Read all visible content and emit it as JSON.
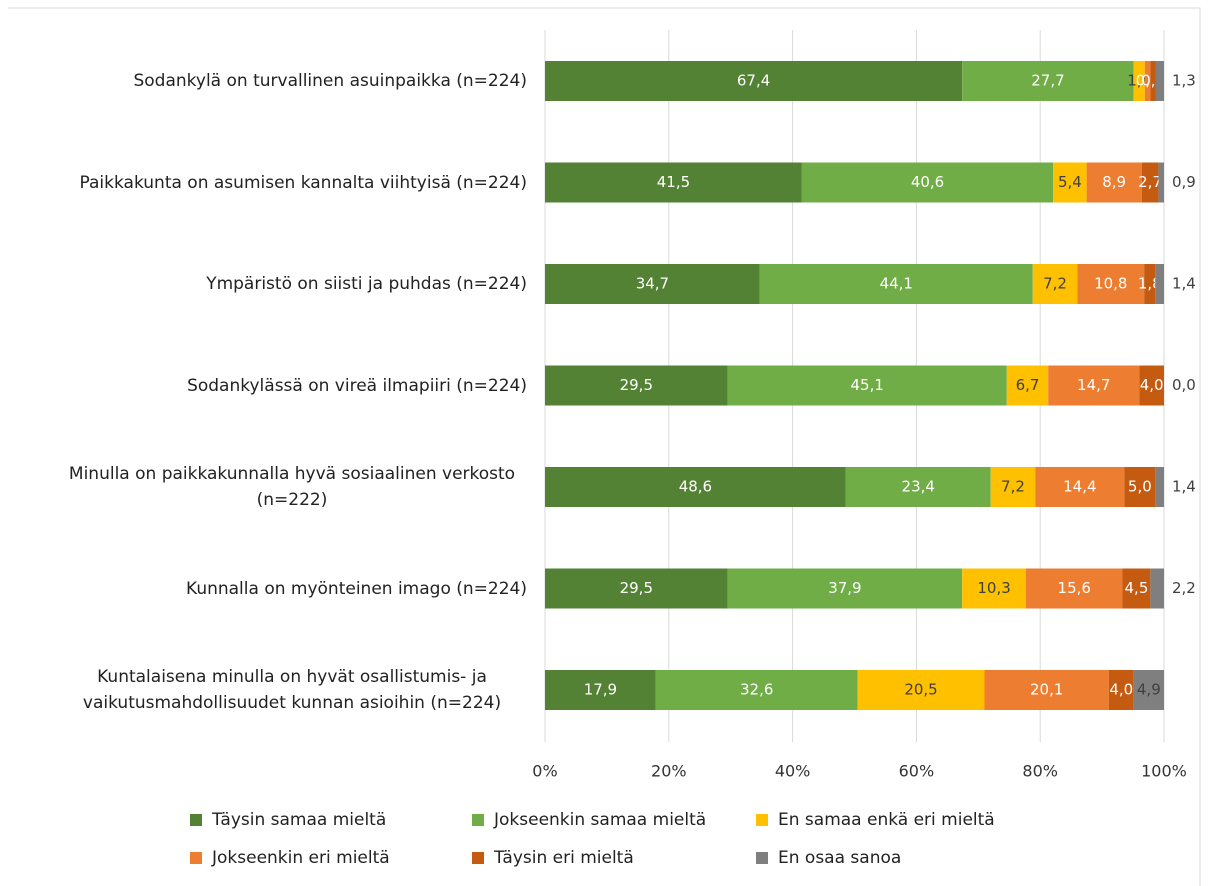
{
  "chart_data": {
    "type": "stacked-barh",
    "categories": [
      "Sodankylä on turvallinen asuinpaikka (n=224)",
      "Paikkakunta on asumisen kannalta viihtyisä (n=224)",
      "Ympäristö on siisti ja puhdas (n=224)",
      "Sodankylässä on vireä ilmapiiri (n=224)",
      "Minulla on paikkakunnalla hyvä sosiaalinen verkosto (n=222)",
      "Kunnalla on myönteinen imago (n=224)",
      "Kuntalaisena minulla on hyvät osallistumis- ja vaikutusmahdollisuudet kunnan asioihin (n=224)"
    ],
    "series": [
      {
        "name": "Täysin samaa mieltä",
        "color": "#548235",
        "values": [
          67.4,
          41.5,
          34.7,
          29.5,
          48.6,
          29.5,
          17.9
        ],
        "value_labels": [
          "67,4",
          "41,5",
          "34,7",
          "29,5",
          "48,6",
          "29,5",
          "17,9"
        ]
      },
      {
        "name": "Jokseenkin samaa mieltä",
        "color": "#70ad47",
        "values": [
          27.7,
          40.6,
          44.1,
          45.1,
          23.4,
          37.9,
          32.6
        ],
        "value_labels": [
          "27,7",
          "40,6",
          "44,1",
          "45,1",
          "23,4",
          "37,9",
          "32,6"
        ]
      },
      {
        "name": "En samaa enkä eri mieltä",
        "color": "#ffc000",
        "values": [
          1.8,
          5.4,
          7.2,
          6.7,
          7.2,
          10.3,
          20.5
        ],
        "value_labels": [
          "1,8",
          "5,4",
          "7,2",
          "6,7",
          "7,2",
          "10,3",
          "20,5"
        ]
      },
      {
        "name": "Jokseenkin eri mieltä",
        "color": "#ed7d31",
        "values": [
          0.9,
          8.9,
          10.8,
          14.7,
          14.4,
          15.6,
          20.1
        ],
        "value_labels": [
          "0,9",
          "8,9",
          "10,8",
          "14,7",
          "14,4",
          "15,6",
          "20,1"
        ]
      },
      {
        "name": "Täysin eri mieltä",
        "color": "#c55a11",
        "values": [
          0.9,
          2.7,
          1.8,
          4.0,
          5.0,
          4.5,
          4.0
        ],
        "value_labels": [
          "0,9",
          "2,7",
          "1,8",
          "4,0",
          "5,0",
          "4,5",
          "4,0"
        ]
      },
      {
        "name": "En osaa sanoa",
        "color": "#7f7f7f",
        "values": [
          1.3,
          0.9,
          1.4,
          0.0,
          1.4,
          2.2,
          4.9
        ],
        "value_labels": [
          "1,3",
          "0,9",
          "1,4",
          "0,0",
          "1,4",
          "2,2",
          "4,9"
        ]
      }
    ],
    "xlim": [
      0,
      100
    ],
    "xticks": [
      {
        "value": 0,
        "label": "0%"
      },
      {
        "value": 20,
        "label": "20%"
      },
      {
        "value": 40,
        "label": "40%"
      },
      {
        "value": 60,
        "label": "60%"
      },
      {
        "value": 80,
        "label": "80%"
      },
      {
        "value": 100,
        "label": "100%"
      }
    ],
    "grid": true
  }
}
